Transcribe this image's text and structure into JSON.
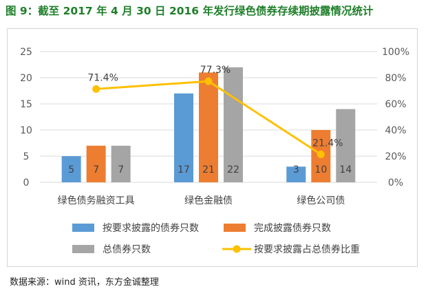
{
  "title": "图 9：截至 2017 年 4 月 30 日 2016 年发行绿色债券存续期披露情况统计",
  "source": "数据来源：wind 资讯，东方金诚整理",
  "colors": {
    "blue": "#5b9bd5",
    "orange": "#ed7d31",
    "gray": "#a5a5a5",
    "yellow": "#ffc000",
    "title_green": "#1f7f2a",
    "grid": "#d9d9d9",
    "axis_text": "#595959"
  },
  "chart_data": {
    "type": "bar",
    "categories": [
      "绿色债务融资工具",
      "绿色金融债",
      "绿色公司债"
    ],
    "series": [
      {
        "name": "按要求披露的债券只数",
        "values": [
          5,
          17,
          3
        ],
        "labels": [
          "5",
          "17",
          "3"
        ],
        "color": "blue",
        "axis": "left"
      },
      {
        "name": "完成披露债券只数",
        "values": [
          7,
          21,
          10
        ],
        "labels": [
          "7",
          "21",
          "10"
        ],
        "color": "orange",
        "axis": "left"
      },
      {
        "name": "总债券只数",
        "values": [
          7,
          22,
          14
        ],
        "labels": [
          "7",
          "22",
          "14"
        ],
        "color": "gray",
        "axis": "left"
      },
      {
        "name": "按要求披露占总债券比重",
        "type": "line",
        "values": [
          0.714,
          0.773,
          0.214
        ],
        "labels": [
          "71.4%",
          "77.3%",
          "21.4%"
        ],
        "color": "yellow",
        "axis": "right"
      }
    ],
    "ylim": [
      0,
      25
    ],
    "yticks": [
      "0",
      "5",
      "10",
      "15",
      "20",
      "25"
    ],
    "y2lim": [
      0,
      1
    ],
    "y2ticks": [
      "0%",
      "20%",
      "40%",
      "60%",
      "80%",
      "100%"
    ],
    "legend_position": "bottom",
    "grid": true
  }
}
